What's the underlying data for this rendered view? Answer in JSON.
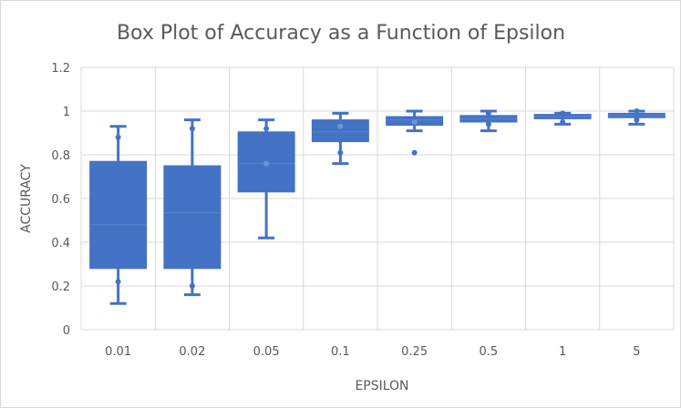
{
  "chart_data": {
    "type": "box",
    "title": "Box Plot of Accuracy as a Function of Epsilon",
    "xlabel": "EPSILON",
    "ylabel": "ACCURACY",
    "ylim": [
      0,
      1.2
    ],
    "yticks": [
      "0",
      "0.2",
      "0.4",
      "0.6",
      "0.8",
      "1",
      "1.2"
    ],
    "grid": true,
    "color": "#4472c4",
    "categories": [
      "0.01",
      "0.02",
      "0.05",
      "0.1",
      "0.25",
      "0.5",
      "1",
      "5"
    ],
    "boxes": [
      {
        "min": 0.12,
        "q1": 0.28,
        "median": 0.48,
        "q3": 0.77,
        "max": 0.93,
        "points": [
          0.88,
          0.22
        ]
      },
      {
        "min": 0.16,
        "q1": 0.28,
        "median": 0.535,
        "q3": 0.75,
        "max": 0.96,
        "points": [
          0.92,
          0.2
        ]
      },
      {
        "min": 0.42,
        "q1": 0.63,
        "median": 0.76,
        "q3": 0.905,
        "max": 0.96,
        "points": [
          0.92,
          0.76
        ]
      },
      {
        "min": 0.76,
        "q1": 0.86,
        "median": 0.905,
        "q3": 0.96,
        "max": 0.99,
        "points": [
          0.81,
          0.93
        ]
      },
      {
        "min": 0.91,
        "q1": 0.935,
        "median": 0.96,
        "q3": 0.975,
        "max": 1.0,
        "points": [
          0.81,
          0.95
        ]
      },
      {
        "min": 0.91,
        "q1": 0.95,
        "median": 0.965,
        "q3": 0.98,
        "max": 1.0,
        "points": [
          0.94,
          0.99
        ]
      },
      {
        "min": 0.94,
        "q1": 0.965,
        "median": 0.975,
        "q3": 0.985,
        "max": 0.99,
        "points": [
          0.95,
          0.99
        ]
      },
      {
        "min": 0.94,
        "q1": 0.97,
        "median": 0.98,
        "q3": 0.99,
        "max": 1.0,
        "points": [
          0.96,
          1.0
        ]
      }
    ]
  }
}
